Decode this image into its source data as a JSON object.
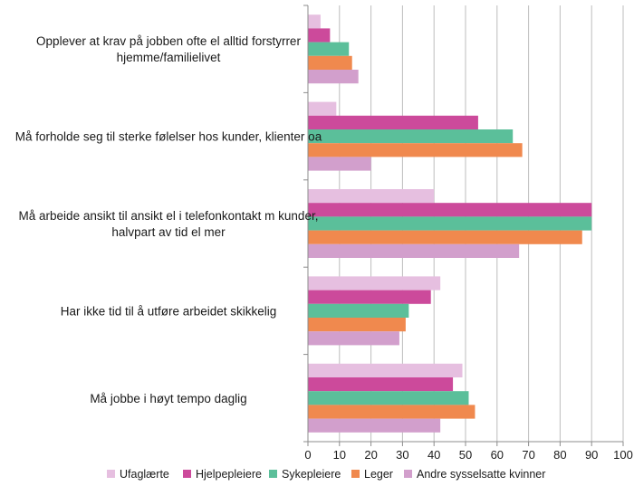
{
  "chart_data": {
    "type": "bar",
    "orientation": "horizontal",
    "categories": [
      [
        "Opplever at krav på jobben ofte el alltid forstyrrer",
        "hjemme/familielivet"
      ],
      [
        "Må forholde seg til sterke følelser hos kunder, klienter oa"
      ],
      [
        "Må arbeide ansikt til ansikt el i telefonkontakt m kunder,",
        "halvpart av tid el mer"
      ],
      [
        "Har ikke tid til å utføre arbeidet skikkelig"
      ],
      [
        "Må jobbe i høyt tempo daglig"
      ]
    ],
    "series": [
      {
        "name": "Ufaglærte",
        "color": "#e6bfe0",
        "values": [
          4,
          9,
          40,
          42,
          49
        ]
      },
      {
        "name": "Hjelpepleiere",
        "color": "#cc4a9b",
        "values": [
          7,
          54,
          90,
          39,
          46
        ]
      },
      {
        "name": "Sykepleiere",
        "color": "#5bbf9a",
        "values": [
          13,
          65,
          90,
          32,
          51
        ]
      },
      {
        "name": "Leger",
        "color": "#f0894e",
        "values": [
          14,
          68,
          87,
          31,
          53
        ]
      },
      {
        "name": "Andre sysselsatte kvinner",
        "color": "#d29fcc",
        "values": [
          16,
          20,
          67,
          29,
          42
        ]
      }
    ],
    "xlim": [
      0,
      100
    ],
    "xticks": [
      "0",
      "10",
      "20",
      "30",
      "40",
      "50",
      "60",
      "70",
      "80",
      "90",
      "100"
    ],
    "grid": "vertical",
    "legend": "bottom"
  }
}
